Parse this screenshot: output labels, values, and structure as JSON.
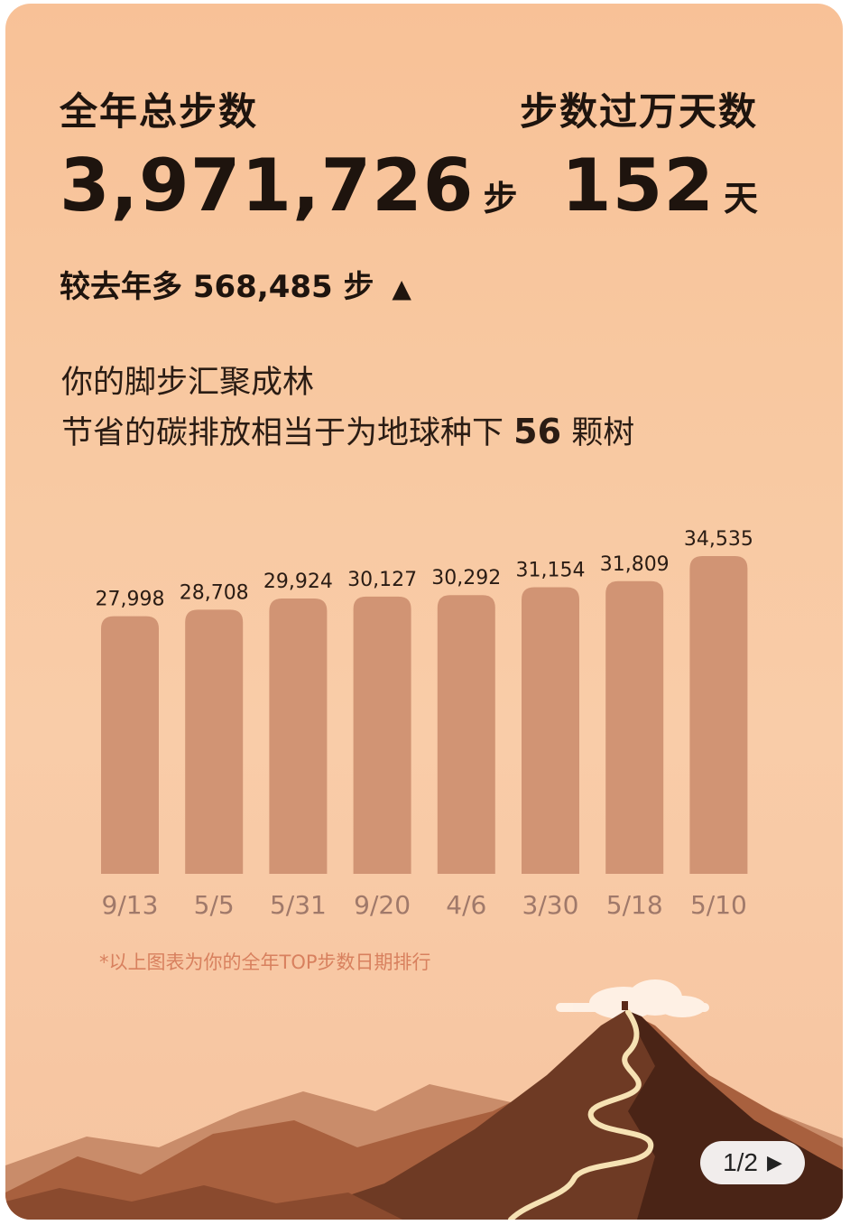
{
  "summary": {
    "total_label": "全年总步数",
    "total_value": "3,971,726",
    "total_unit": "步",
    "compare_prefix": "较去年多",
    "compare_value": "568,485",
    "compare_unit": "步",
    "compare_icon": "▲",
    "days_label": "步数过万天数",
    "days_value": "152",
    "days_unit": "天"
  },
  "eco": {
    "line1": "你的脚步汇聚成林",
    "line2_prefix": "节省的碳排放相当于为地球种下",
    "trees": "56",
    "line2_suffix": "颗树"
  },
  "chart_data": {
    "type": "bar",
    "categories": [
      "9/13",
      "5/5",
      "5/31",
      "9/20",
      "4/6",
      "3/30",
      "5/18",
      "5/10"
    ],
    "values": [
      27998,
      28708,
      29924,
      30127,
      30292,
      31154,
      31809,
      34535
    ],
    "value_labels": [
      "27,998",
      "28,708",
      "29,924",
      "30,127",
      "30,292",
      "31,154",
      "31,809",
      "34,535"
    ],
    "bar_color": "#d19474",
    "title": "",
    "xlabel": "",
    "ylabel": "",
    "grid": false
  },
  "footnote": "*以上图表为你的全年TOP步数日期排行",
  "pager": {
    "text": "1/2",
    "icon": "play-arrow-icon"
  },
  "colors": {
    "background_top": "#f8c197",
    "text": "#1e140e",
    "axis_label": "#a0796a",
    "footnote": "#d8805e"
  }
}
